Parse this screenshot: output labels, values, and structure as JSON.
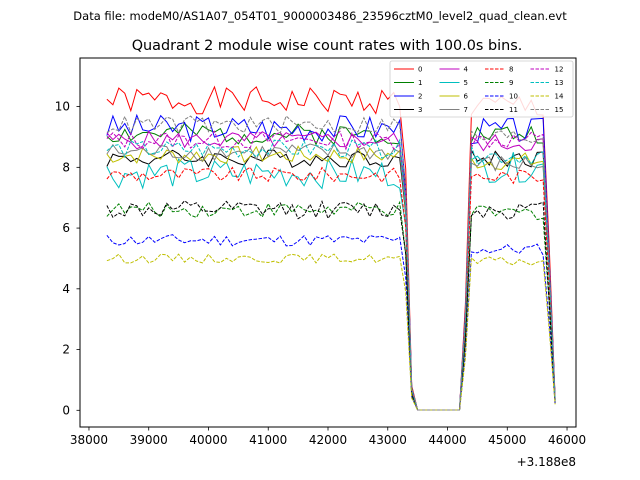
{
  "chart_data": {
    "type": "line",
    "suptitle": "Data file: modeM0/AS1A07_054T01_9000003486_23596cztM0_level2_quad_clean.evt",
    "title": "Quadrant 2 module wise count rates with 100.0s bins.",
    "xlabel": "",
    "ylabel": "",
    "x_offset_label": "+3.188e8",
    "xlim": [
      37850,
      46150
    ],
    "ylim": [
      -0.55,
      11.6
    ],
    "x_ticks": [
      38000,
      39000,
      40000,
      41000,
      42000,
      43000,
      44000,
      45000,
      46000
    ],
    "x_tick_labels": [
      "38000",
      "39000",
      "40000",
      "41000",
      "42000",
      "43000",
      "44000",
      "45000",
      "46000"
    ],
    "y_ticks": [
      0,
      2,
      4,
      6,
      8,
      10
    ],
    "y_tick_labels": [
      "0",
      "2",
      "4",
      "6",
      "8",
      "10"
    ],
    "segments": [
      {
        "start": 38300,
        "end": 43400,
        "step": 100
      },
      {
        "start": 43500,
        "end": 44200,
        "step": 100
      },
      {
        "start": 44300,
        "end": 45800,
        "step": 100
      }
    ],
    "series": [
      {
        "name": "0",
        "color": "#ff0000",
        "dash": "solid",
        "level": 10.2,
        "jitter": 0.45,
        "seg2": 10.0,
        "seed": 1
      },
      {
        "name": "1",
        "color": "#008000",
        "dash": "solid",
        "level": 9.1,
        "jitter": 0.35,
        "seg2": 9.1,
        "seed": 2
      },
      {
        "name": "2",
        "color": "#0000ff",
        "dash": "solid",
        "level": 9.3,
        "jitter": 0.45,
        "seg2": 9.2,
        "seed": 3
      },
      {
        "name": "3",
        "color": "#000000",
        "dash": "solid",
        "level": 8.3,
        "jitter": 0.3,
        "seg2": 8.3,
        "seed": 4
      },
      {
        "name": "4",
        "color": "#bf00bf",
        "dash": "solid",
        "level": 8.9,
        "jitter": 0.3,
        "seg2": 8.8,
        "seed": 5
      },
      {
        "name": "5",
        "color": "#00bfbf",
        "dash": "solid",
        "level": 7.8,
        "jitter": 0.5,
        "seg2": 8.0,
        "seed": 6
      },
      {
        "name": "6",
        "color": "#bfbf00",
        "dash": "solid",
        "level": 8.4,
        "jitter": 0.3,
        "seg2": 8.2,
        "seed": 7
      },
      {
        "name": "7",
        "color": "#808080",
        "dash": "solid",
        "level": 8.5,
        "jitter": 0.3,
        "seg2": 8.1,
        "seed": 8
      },
      {
        "name": "8",
        "color": "#ff0000",
        "dash": "dashed",
        "level": 7.75,
        "jitter": 0.25,
        "seg2": 7.7,
        "seed": 9
      },
      {
        "name": "9",
        "color": "#008000",
        "dash": "dashed",
        "level": 6.6,
        "jitter": 0.25,
        "seg2": 6.5,
        "seed": 10
      },
      {
        "name": "10",
        "color": "#0000ff",
        "dash": "dashed",
        "level": 5.6,
        "jitter": 0.2,
        "seg2": 5.3,
        "seed": 11
      },
      {
        "name": "11",
        "color": "#000000",
        "dash": "dashed",
        "level": 6.6,
        "jitter": 0.3,
        "seg2": 6.6,
        "seed": 12
      },
      {
        "name": "12",
        "color": "#bf00bf",
        "dash": "dashed",
        "level": 8.9,
        "jitter": 0.3,
        "seg2": 8.9,
        "seed": 13
      },
      {
        "name": "13",
        "color": "#00bfbf",
        "dash": "dashed",
        "level": 8.6,
        "jitter": 0.3,
        "seg2": 8.4,
        "seed": 14
      },
      {
        "name": "14",
        "color": "#bfbf00",
        "dash": "dashed",
        "level": 5.0,
        "jitter": 0.15,
        "seg2": 4.9,
        "seed": 15
      },
      {
        "name": "15",
        "color": "#808080",
        "dash": "dashed",
        "level": 9.4,
        "jitter": 0.3,
        "seg2": 9.0,
        "seed": 16
      }
    ],
    "legend": {
      "position": "top-right",
      "columns": 4
    }
  }
}
